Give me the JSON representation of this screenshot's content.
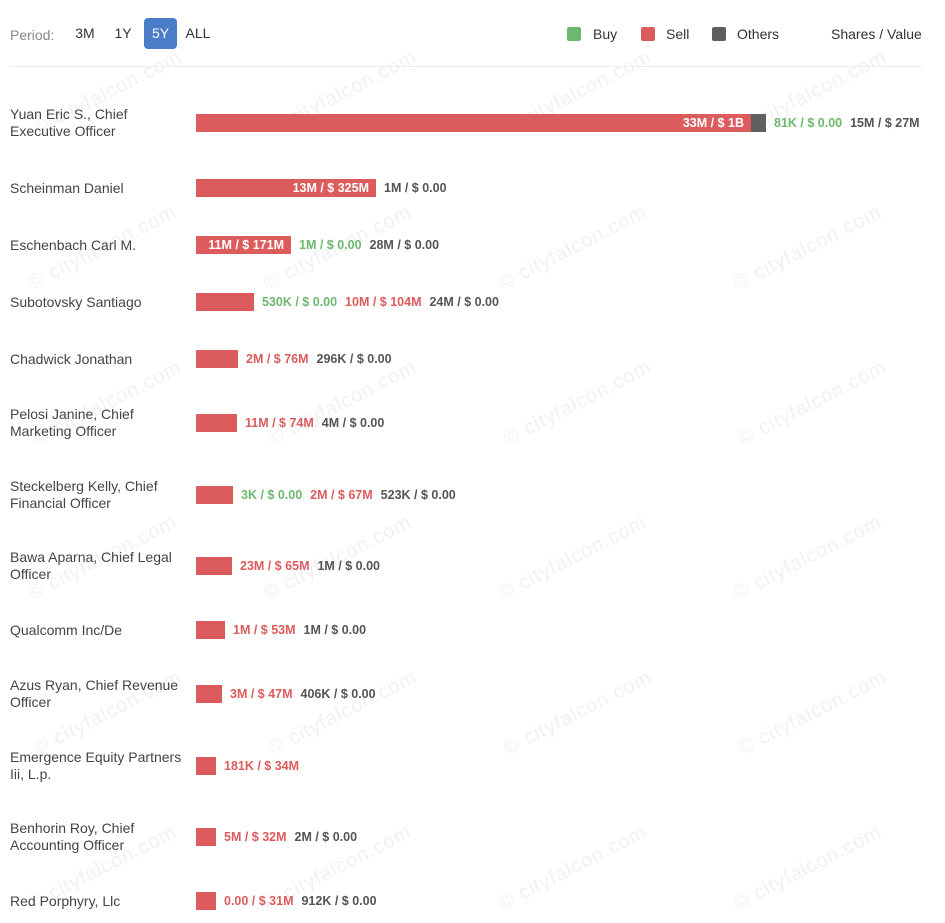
{
  "header": {
    "period_label": "Period:",
    "periods": [
      "3M",
      "1Y",
      "5Y",
      "ALL"
    ],
    "active_period": "5Y",
    "legend": [
      {
        "label": "Buy",
        "color": "#6db86d"
      },
      {
        "label": "Sell",
        "color": "#dc5c5e"
      },
      {
        "label": "Others",
        "color": "#5f5f5f"
      }
    ],
    "shares_value_label": "Shares / Value"
  },
  "watermark": "© cityfalcon.com",
  "chart_data": {
    "type": "bar",
    "orientation": "horizontal",
    "stacked": true,
    "value_unit": "USD",
    "max_value": 1000000000,
    "rows": [
      {
        "name": "Yuan Eric S., Chief Executive Officer",
        "sell_value": 1000000000,
        "sell_label": "33M / $ 1B",
        "buy_label": "81K / $ 0.00",
        "others_label": "15M / $ 27M",
        "others_value": 27000000
      },
      {
        "name": "Scheinman Daniel",
        "sell_value": 325000000,
        "sell_label": "13M / $ 325M",
        "buy_label": null,
        "others_label": "1M / $ 0.00",
        "others_value": 0
      },
      {
        "name": "Eschenbach Carl M.",
        "sell_value": 171000000,
        "sell_label": "11M / $ 171M",
        "buy_label": "1M / $ 0.00",
        "others_label": "28M / $ 0.00",
        "others_value": 0
      },
      {
        "name": "Subotovsky Santiago",
        "sell_value": 104000000,
        "sell_label": "10M / $ 104M",
        "buy_label": "530K / $ 0.00",
        "others_label": "24M / $ 0.00",
        "others_value": 0
      },
      {
        "name": "Chadwick Jonathan",
        "sell_value": 76000000,
        "sell_label": "2M / $ 76M",
        "buy_label": null,
        "others_label": "296K / $ 0.00",
        "others_value": 0
      },
      {
        "name": "Pelosi Janine, Chief Marketing Officer",
        "sell_value": 74000000,
        "sell_label": "11M / $ 74M",
        "buy_label": null,
        "others_label": "4M / $ 0.00",
        "others_value": 0
      },
      {
        "name": "Steckelberg Kelly, Chief Financial Officer",
        "sell_value": 67000000,
        "sell_label": "2M / $ 67M",
        "buy_label": "3K / $ 0.00",
        "others_label": "523K / $ 0.00",
        "others_value": 0
      },
      {
        "name": "Bawa Aparna, Chief Legal Officer",
        "sell_value": 65000000,
        "sell_label": "23M / $ 65M",
        "buy_label": null,
        "others_label": "1M / $ 0.00",
        "others_value": 0
      },
      {
        "name": "Qualcomm Inc/De",
        "sell_value": 53000000,
        "sell_label": "1M / $ 53M",
        "buy_label": null,
        "others_label": "1M / $ 0.00",
        "others_value": 0
      },
      {
        "name": "Azus Ryan, Chief Revenue Officer",
        "sell_value": 47000000,
        "sell_label": "3M / $ 47M",
        "buy_label": null,
        "others_label": "406K / $ 0.00",
        "others_value": 0
      },
      {
        "name": "Emergence Equity Partners Iii, L.p.",
        "sell_value": 34000000,
        "sell_label": "181K / $ 34M",
        "buy_label": null,
        "others_label": null,
        "others_value": 0
      },
      {
        "name": "Benhorin Roy, Chief Accounting Officer",
        "sell_value": 32000000,
        "sell_label": "5M / $ 32M",
        "buy_label": null,
        "others_label": "2M / $ 0.00",
        "others_value": 0
      },
      {
        "name": "Red Porphyry, Llc",
        "sell_value": 31000000,
        "sell_label": "0.00 / $ 31M",
        "buy_label": null,
        "others_label": "912K / $ 0.00",
        "others_value": 0
      }
    ]
  }
}
